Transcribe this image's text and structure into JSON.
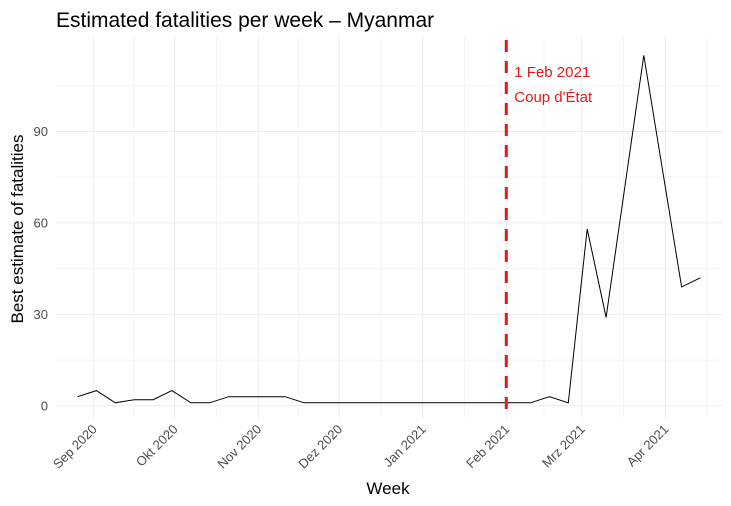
{
  "chart_data": {
    "type": "line",
    "title": "Estimated fatalities per week – Myanmar",
    "xlabel": "Week",
    "ylabel": "Best estimate of fatalities",
    "x_start": "2020-08-26",
    "x_interval_days": 7,
    "x_ticks": [
      {
        "label": "Sep 2020",
        "date": "2020-09-01"
      },
      {
        "label": "Okt 2020",
        "date": "2020-10-01"
      },
      {
        "label": "Nov 2020",
        "date": "2020-11-01"
      },
      {
        "label": "Dez 2020",
        "date": "2020-12-01"
      },
      {
        "label": "Jan 2021",
        "date": "2021-01-01"
      },
      {
        "label": "Feb 2021",
        "date": "2021-02-01"
      },
      {
        "label": "Mrz 2021",
        "date": "2021-03-01"
      },
      {
        "label": "Apr 2021",
        "date": "2021-04-01"
      }
    ],
    "y_ticks": [
      0,
      30,
      60,
      90
    ],
    "ylim": [
      -4,
      121
    ],
    "xlim": [
      "2020-08-18",
      "2021-04-22"
    ],
    "grid": true,
    "series": [
      {
        "name": "fatalities",
        "color": "#000000",
        "values": [
          3,
          5,
          1,
          2,
          2,
          5,
          1,
          1,
          3,
          3,
          3,
          3,
          1,
          1,
          1,
          1,
          1,
          1,
          1,
          1,
          1,
          1,
          1,
          1,
          1,
          3,
          1,
          58,
          29,
          72,
          115,
          77,
          39,
          42
        ]
      }
    ],
    "annotation": {
      "line_date": "2021-02-01",
      "line_color": "#e31a1c",
      "line_style": "dashed",
      "label_line1": "1 Feb 2021",
      "label_line2": "Coup d'État"
    }
  }
}
